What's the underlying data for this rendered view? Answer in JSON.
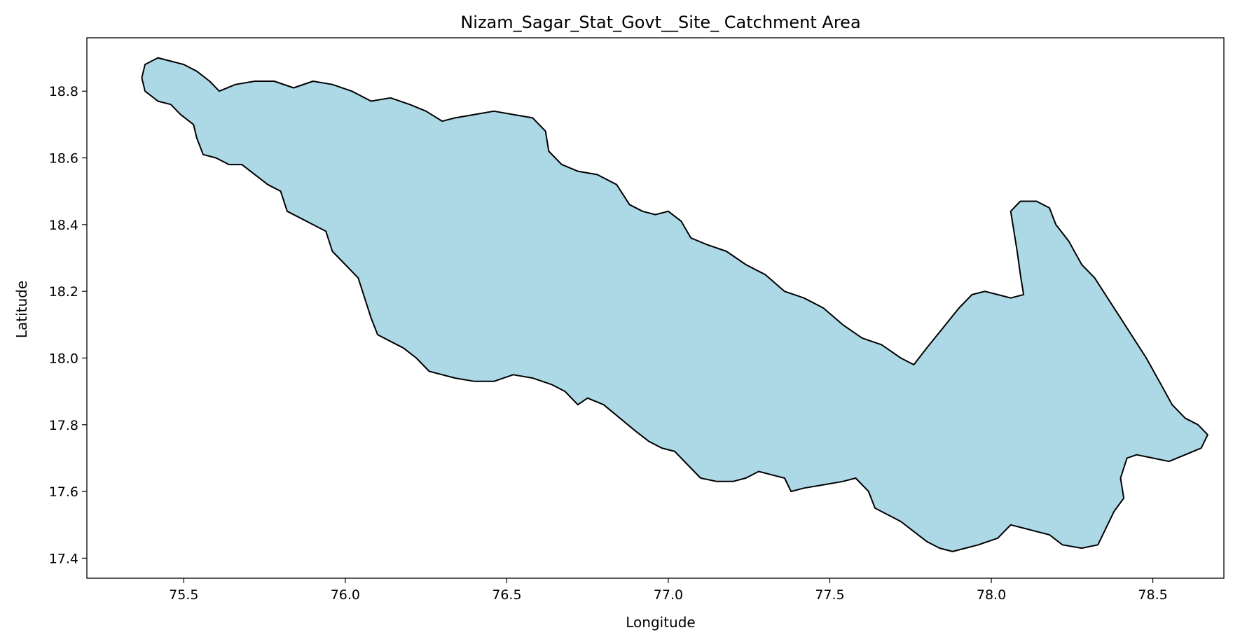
{
  "chart_data": {
    "type": "map",
    "title": "Nizam_Sagar_Stat_Govt__Site_ Catchment Area",
    "xlabel": "Longitude",
    "ylabel": "Latitude",
    "xlim": [
      75.2,
      78.72
    ],
    "ylim": [
      17.34,
      18.96
    ],
    "x_ticks": [
      "75.5",
      "76.0",
      "76.5",
      "77.0",
      "77.5",
      "78.0",
      "78.5"
    ],
    "y_ticks": [
      "17.4",
      "17.6",
      "17.8",
      "18.0",
      "18.2",
      "18.4",
      "18.6",
      "18.8"
    ],
    "grid": false,
    "region": {
      "name": "Nizam_Sagar_Stat_Govt__Site_",
      "fill": "#add8e6",
      "edge": "#000000",
      "boundary": [
        [
          75.38,
          18.88
        ],
        [
          75.42,
          18.9
        ],
        [
          75.46,
          18.89
        ],
        [
          75.5,
          18.88
        ],
        [
          75.54,
          18.86
        ],
        [
          75.58,
          18.83
        ],
        [
          75.61,
          18.8
        ],
        [
          75.66,
          18.82
        ],
        [
          75.72,
          18.83
        ],
        [
          75.78,
          18.83
        ],
        [
          75.84,
          18.81
        ],
        [
          75.9,
          18.83
        ],
        [
          75.96,
          18.82
        ],
        [
          76.02,
          18.8
        ],
        [
          76.08,
          18.77
        ],
        [
          76.14,
          18.78
        ],
        [
          76.2,
          18.76
        ],
        [
          76.25,
          18.74
        ],
        [
          76.3,
          18.71
        ],
        [
          76.34,
          18.72
        ],
        [
          76.4,
          18.73
        ],
        [
          76.46,
          18.74
        ],
        [
          76.52,
          18.73
        ],
        [
          76.58,
          18.72
        ],
        [
          76.62,
          18.68
        ],
        [
          76.63,
          18.62
        ],
        [
          76.67,
          18.58
        ],
        [
          76.72,
          18.56
        ],
        [
          76.78,
          18.55
        ],
        [
          76.84,
          18.52
        ],
        [
          76.88,
          18.46
        ],
        [
          76.92,
          18.44
        ],
        [
          76.96,
          18.43
        ],
        [
          77.0,
          18.44
        ],
        [
          77.04,
          18.41
        ],
        [
          77.07,
          18.36
        ],
        [
          77.12,
          18.34
        ],
        [
          77.18,
          18.32
        ],
        [
          77.24,
          18.28
        ],
        [
          77.3,
          18.25
        ],
        [
          77.36,
          18.2
        ],
        [
          77.42,
          18.18
        ],
        [
          77.48,
          18.15
        ],
        [
          77.54,
          18.1
        ],
        [
          77.6,
          18.06
        ],
        [
          77.66,
          18.04
        ],
        [
          77.72,
          18.0
        ],
        [
          77.76,
          17.98
        ],
        [
          77.8,
          18.03
        ],
        [
          77.85,
          18.09
        ],
        [
          77.9,
          18.15
        ],
        [
          77.94,
          18.19
        ],
        [
          77.98,
          18.2
        ],
        [
          78.02,
          18.19
        ],
        [
          78.06,
          18.18
        ],
        [
          78.1,
          18.19
        ],
        [
          78.09,
          18.25
        ],
        [
          78.08,
          18.32
        ],
        [
          78.07,
          18.38
        ],
        [
          78.06,
          18.44
        ],
        [
          78.09,
          18.47
        ],
        [
          78.14,
          18.47
        ],
        [
          78.18,
          18.45
        ],
        [
          78.2,
          18.4
        ],
        [
          78.24,
          18.35
        ],
        [
          78.28,
          18.28
        ],
        [
          78.32,
          18.24
        ],
        [
          78.36,
          18.18
        ],
        [
          78.4,
          18.12
        ],
        [
          78.44,
          18.06
        ],
        [
          78.48,
          18.0
        ],
        [
          78.52,
          17.93
        ],
        [
          78.56,
          17.86
        ],
        [
          78.6,
          17.82
        ],
        [
          78.64,
          17.8
        ],
        [
          78.67,
          17.77
        ],
        [
          78.65,
          17.73
        ],
        [
          78.6,
          17.71
        ],
        [
          78.55,
          17.69
        ],
        [
          78.5,
          17.7
        ],
        [
          78.45,
          17.71
        ],
        [
          78.42,
          17.7
        ],
        [
          78.4,
          17.64
        ],
        [
          78.41,
          17.58
        ],
        [
          78.38,
          17.54
        ],
        [
          78.35,
          17.48
        ],
        [
          78.33,
          17.44
        ],
        [
          78.28,
          17.43
        ],
        [
          78.22,
          17.44
        ],
        [
          78.18,
          17.47
        ],
        [
          78.14,
          17.48
        ],
        [
          78.1,
          17.49
        ],
        [
          78.06,
          17.5
        ],
        [
          78.02,
          17.46
        ],
        [
          77.96,
          17.44
        ],
        [
          77.92,
          17.43
        ],
        [
          77.88,
          17.42
        ],
        [
          77.84,
          17.43
        ],
        [
          77.8,
          17.45
        ],
        [
          77.76,
          17.48
        ],
        [
          77.72,
          17.51
        ],
        [
          77.68,
          17.53
        ],
        [
          77.64,
          17.55
        ],
        [
          77.62,
          17.6
        ],
        [
          77.58,
          17.64
        ],
        [
          77.54,
          17.63
        ],
        [
          77.48,
          17.62
        ],
        [
          77.42,
          17.61
        ],
        [
          77.38,
          17.6
        ],
        [
          77.36,
          17.64
        ],
        [
          77.32,
          17.65
        ],
        [
          77.28,
          17.66
        ],
        [
          77.24,
          17.64
        ],
        [
          77.2,
          17.63
        ],
        [
          77.15,
          17.63
        ],
        [
          77.1,
          17.64
        ],
        [
          77.06,
          17.68
        ],
        [
          77.02,
          17.72
        ],
        [
          76.98,
          17.73
        ],
        [
          76.94,
          17.75
        ],
        [
          76.9,
          17.78
        ],
        [
          76.85,
          17.82
        ],
        [
          76.8,
          17.86
        ],
        [
          76.75,
          17.88
        ],
        [
          76.72,
          17.86
        ],
        [
          76.68,
          17.9
        ],
        [
          76.64,
          17.92
        ],
        [
          76.58,
          17.94
        ],
        [
          76.52,
          17.95
        ],
        [
          76.46,
          17.93
        ],
        [
          76.4,
          17.93
        ],
        [
          76.34,
          17.94
        ],
        [
          76.3,
          17.95
        ],
        [
          76.26,
          17.96
        ],
        [
          76.22,
          18.0
        ],
        [
          76.18,
          18.03
        ],
        [
          76.14,
          18.05
        ],
        [
          76.1,
          18.07
        ],
        [
          76.08,
          18.12
        ],
        [
          76.06,
          18.18
        ],
        [
          76.04,
          18.24
        ],
        [
          76.0,
          18.28
        ],
        [
          75.96,
          18.32
        ],
        [
          75.94,
          18.38
        ],
        [
          75.9,
          18.4
        ],
        [
          75.86,
          18.42
        ],
        [
          75.82,
          18.44
        ],
        [
          75.8,
          18.5
        ],
        [
          75.76,
          18.52
        ],
        [
          75.72,
          18.55
        ],
        [
          75.68,
          18.58
        ],
        [
          75.64,
          18.58
        ],
        [
          75.6,
          18.6
        ],
        [
          75.56,
          18.61
        ],
        [
          75.54,
          18.66
        ],
        [
          75.53,
          18.7
        ],
        [
          75.49,
          18.73
        ],
        [
          75.46,
          18.76
        ],
        [
          75.42,
          18.77
        ],
        [
          75.38,
          18.8
        ],
        [
          75.37,
          18.84
        ],
        [
          75.38,
          18.88
        ]
      ]
    }
  }
}
